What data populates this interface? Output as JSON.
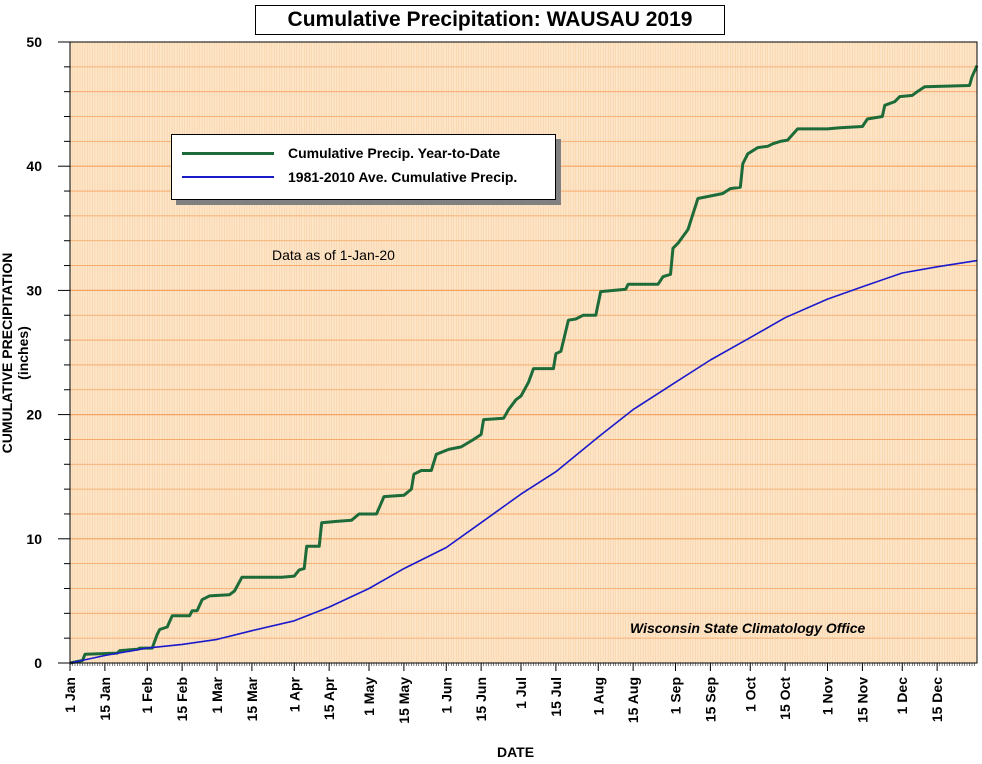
{
  "chart_data": {
    "type": "line",
    "title": "Cumulative Precipitation: WAUSAU 2019",
    "xlabel": "DATE",
    "ylabel": "CUMULATIVE PRECIPITATION (inches)",
    "ylim": [
      0,
      50
    ],
    "yticks": [
      "0",
      "10",
      "20",
      "30",
      "40",
      "50"
    ],
    "xlim": [
      "2019-01-01",
      "2019-12-31"
    ],
    "xticks": [
      {
        "date": "2019-01-01",
        "label": "1 Jan"
      },
      {
        "date": "2019-01-15",
        "label": "15 Jan"
      },
      {
        "date": "2019-02-01",
        "label": "1 Feb"
      },
      {
        "date": "2019-02-15",
        "label": "15 Feb"
      },
      {
        "date": "2019-03-01",
        "label": "1 Mar"
      },
      {
        "date": "2019-03-15",
        "label": "15 Mar"
      },
      {
        "date": "2019-04-01",
        "label": "1 Apr"
      },
      {
        "date": "2019-04-15",
        "label": "15 Apr"
      },
      {
        "date": "2019-05-01",
        "label": "1 May"
      },
      {
        "date": "2019-05-15",
        "label": "15 May"
      },
      {
        "date": "2019-06-01",
        "label": "1 Jun"
      },
      {
        "date": "2019-06-15",
        "label": "15 Jun"
      },
      {
        "date": "2019-07-01",
        "label": "1 Jul"
      },
      {
        "date": "2019-07-15",
        "label": "15 Jul"
      },
      {
        "date": "2019-08-01",
        "label": "1 Aug"
      },
      {
        "date": "2019-08-15",
        "label": "15 Aug"
      },
      {
        "date": "2019-09-01",
        "label": "1 Sep"
      },
      {
        "date": "2019-09-15",
        "label": "15 Sep"
      },
      {
        "date": "2019-10-01",
        "label": "1 Oct"
      },
      {
        "date": "2019-10-15",
        "label": "15 Oct"
      },
      {
        "date": "2019-11-01",
        "label": "1 Nov"
      },
      {
        "date": "2019-11-15",
        "label": "15 Nov"
      },
      {
        "date": "2019-12-01",
        "label": "1 Dec"
      },
      {
        "date": "2019-12-15",
        "label": "15 Dec"
      }
    ],
    "grid": true,
    "legend_position": "upper-left",
    "colors": {
      "plot_background": "#fde5c8",
      "major_grid": "#f4a460",
      "minor_grid": "#f8cfa4",
      "ytd_series": "#1e6b3a",
      "normal_series": "#1a1acc"
    },
    "series": [
      {
        "name": "Cumulative Precip. Year-to-Date",
        "color": "#1e6b3a",
        "points": [
          [
            "2019-01-01",
            0.0
          ],
          [
            "2019-01-06",
            0.2
          ],
          [
            "2019-01-07",
            0.7
          ],
          [
            "2019-01-20",
            0.8
          ],
          [
            "2019-01-21",
            1.0
          ],
          [
            "2019-01-28",
            1.1
          ],
          [
            "2019-01-29",
            1.2
          ],
          [
            "2019-02-03",
            1.2
          ],
          [
            "2019-02-05",
            2.3
          ],
          [
            "2019-02-06",
            2.7
          ],
          [
            "2019-02-09",
            2.9
          ],
          [
            "2019-02-11",
            3.8
          ],
          [
            "2019-02-18",
            3.8
          ],
          [
            "2019-02-19",
            4.2
          ],
          [
            "2019-02-21",
            4.2
          ],
          [
            "2019-02-23",
            5.1
          ],
          [
            "2019-02-26",
            5.4
          ],
          [
            "2019-03-06",
            5.5
          ],
          [
            "2019-03-08",
            5.8
          ],
          [
            "2019-03-11",
            6.9
          ],
          [
            "2019-03-27",
            6.9
          ],
          [
            "2019-04-01",
            7.0
          ],
          [
            "2019-04-03",
            7.5
          ],
          [
            "2019-04-05",
            7.6
          ],
          [
            "2019-04-06",
            9.4
          ],
          [
            "2019-04-11",
            9.4
          ],
          [
            "2019-04-12",
            11.3
          ],
          [
            "2019-04-18",
            11.4
          ],
          [
            "2019-04-24",
            11.5
          ],
          [
            "2019-04-27",
            12.0
          ],
          [
            "2019-05-04",
            12.0
          ],
          [
            "2019-05-07",
            13.4
          ],
          [
            "2019-05-15",
            13.5
          ],
          [
            "2019-05-18",
            14.0
          ],
          [
            "2019-05-19",
            15.2
          ],
          [
            "2019-05-22",
            15.5
          ],
          [
            "2019-05-26",
            15.5
          ],
          [
            "2019-05-28",
            16.8
          ],
          [
            "2019-06-02",
            17.2
          ],
          [
            "2019-06-07",
            17.4
          ],
          [
            "2019-06-12",
            18.0
          ],
          [
            "2019-06-15",
            18.4
          ],
          [
            "2019-06-16",
            19.6
          ],
          [
            "2019-06-24",
            19.7
          ],
          [
            "2019-06-26",
            20.4
          ],
          [
            "2019-06-29",
            21.2
          ],
          [
            "2019-07-01",
            21.5
          ],
          [
            "2019-07-04",
            22.6
          ],
          [
            "2019-07-06",
            23.7
          ],
          [
            "2019-07-14",
            23.7
          ],
          [
            "2019-07-15",
            24.9
          ],
          [
            "2019-07-17",
            25.1
          ],
          [
            "2019-07-20",
            27.6
          ],
          [
            "2019-07-23",
            27.7
          ],
          [
            "2019-07-26",
            28.0
          ],
          [
            "2019-07-31",
            28.0
          ],
          [
            "2019-08-02",
            29.9
          ],
          [
            "2019-08-12",
            30.1
          ],
          [
            "2019-08-13",
            30.5
          ],
          [
            "2019-08-25",
            30.5
          ],
          [
            "2019-08-27",
            31.1
          ],
          [
            "2019-08-30",
            31.3
          ],
          [
            "2019-08-31",
            33.4
          ],
          [
            "2019-09-02",
            33.8
          ],
          [
            "2019-09-06",
            34.9
          ],
          [
            "2019-09-10",
            37.4
          ],
          [
            "2019-09-15",
            37.6
          ],
          [
            "2019-09-20",
            37.8
          ],
          [
            "2019-09-23",
            38.2
          ],
          [
            "2019-09-27",
            38.3
          ],
          [
            "2019-09-28",
            40.2
          ],
          [
            "2019-09-30",
            41.0
          ],
          [
            "2019-10-04",
            41.5
          ],
          [
            "2019-10-08",
            41.6
          ],
          [
            "2019-10-10",
            41.8
          ],
          [
            "2019-10-13",
            42.0
          ],
          [
            "2019-10-16",
            42.1
          ],
          [
            "2019-10-20",
            43.0
          ],
          [
            "2019-11-01",
            43.0
          ],
          [
            "2019-11-06",
            43.1
          ],
          [
            "2019-11-15",
            43.2
          ],
          [
            "2019-11-17",
            43.8
          ],
          [
            "2019-11-23",
            44.0
          ],
          [
            "2019-11-24",
            44.9
          ],
          [
            "2019-11-28",
            45.2
          ],
          [
            "2019-11-30",
            45.6
          ],
          [
            "2019-12-05",
            45.7
          ],
          [
            "2019-12-07",
            46.0
          ],
          [
            "2019-12-10",
            46.4
          ],
          [
            "2019-12-28",
            46.5
          ],
          [
            "2019-12-29",
            47.2
          ],
          [
            "2019-12-31",
            48.1
          ]
        ]
      },
      {
        "name": "1981-2010 Ave. Cumulative Precip.",
        "color": "#1a1acc",
        "points": [
          [
            "2019-01-01",
            0.0
          ],
          [
            "2019-01-15",
            0.6
          ],
          [
            "2019-02-01",
            1.2
          ],
          [
            "2019-02-15",
            1.5
          ],
          [
            "2019-03-01",
            1.9
          ],
          [
            "2019-03-15",
            2.6
          ],
          [
            "2019-04-01",
            3.4
          ],
          [
            "2019-04-15",
            4.5
          ],
          [
            "2019-05-01",
            6.0
          ],
          [
            "2019-05-15",
            7.6
          ],
          [
            "2019-06-01",
            9.3
          ],
          [
            "2019-06-15",
            11.3
          ],
          [
            "2019-07-01",
            13.6
          ],
          [
            "2019-07-15",
            15.4
          ],
          [
            "2019-08-01",
            18.2
          ],
          [
            "2019-08-15",
            20.4
          ],
          [
            "2019-09-01",
            22.6
          ],
          [
            "2019-09-15",
            24.4
          ],
          [
            "2019-10-01",
            26.2
          ],
          [
            "2019-10-15",
            27.8
          ],
          [
            "2019-11-01",
            29.3
          ],
          [
            "2019-11-15",
            30.3
          ],
          [
            "2019-12-01",
            31.4
          ],
          [
            "2019-12-15",
            31.9
          ],
          [
            "2019-12-31",
            32.4
          ]
        ]
      }
    ],
    "annotations": [
      "Data as of 1-Jan-20",
      "Wisconsin State Climatology Office"
    ]
  }
}
